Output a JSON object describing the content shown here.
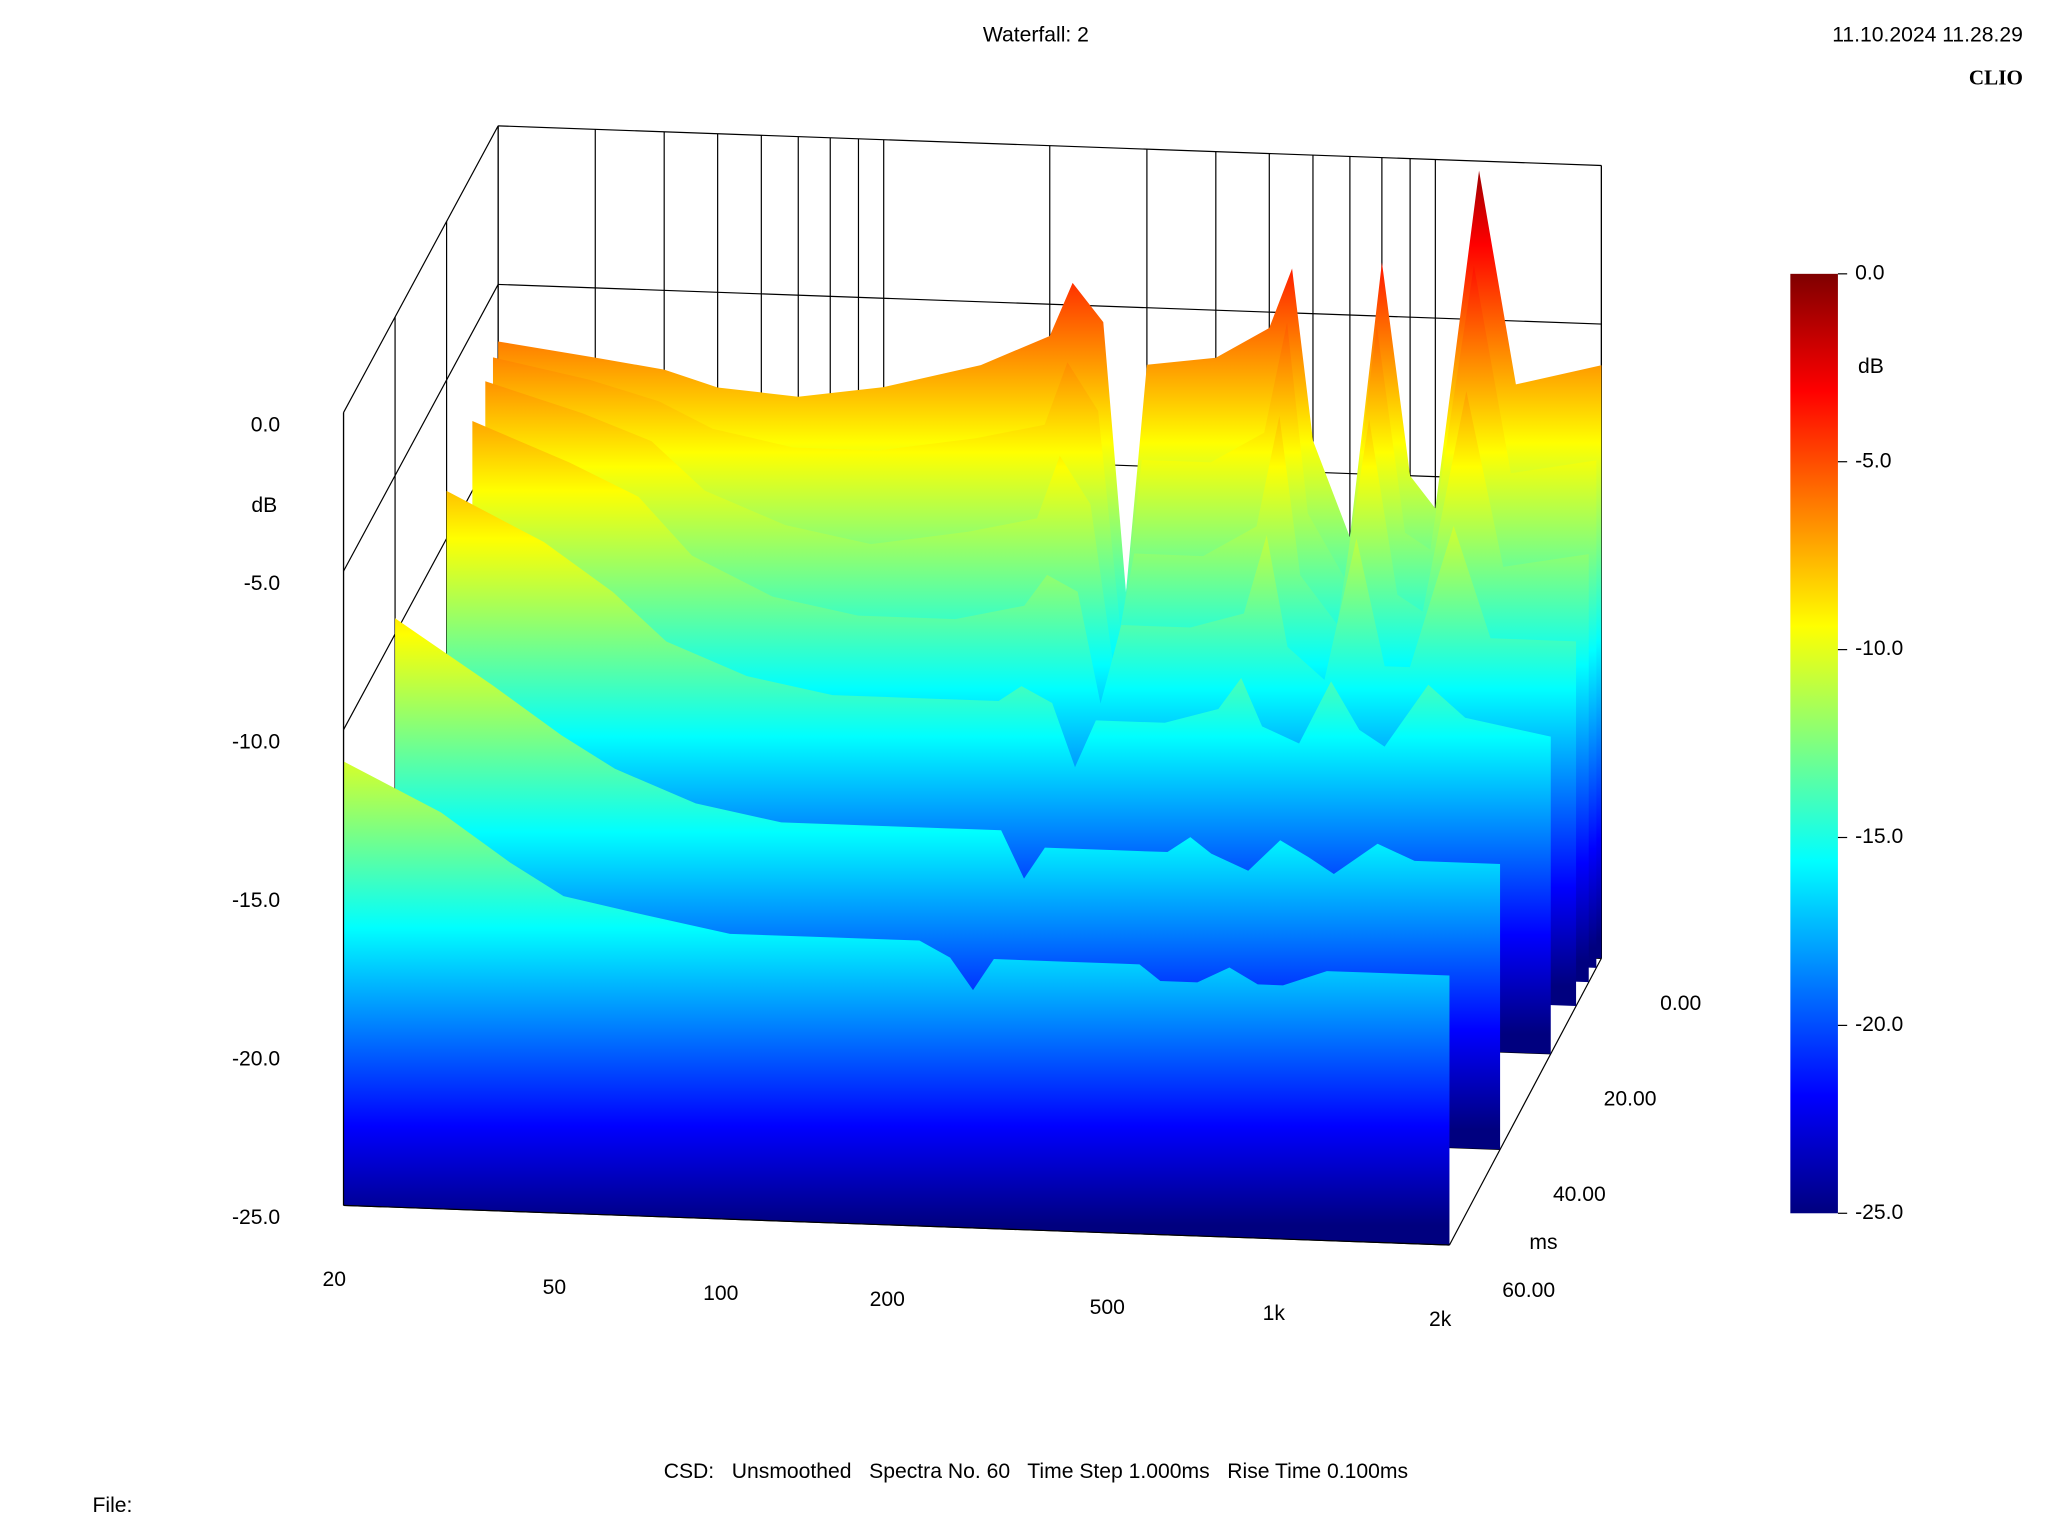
{
  "chart_data": {
    "type": "waterfall",
    "title": "Waterfall: 2",
    "timestamp": "11.10.2024 11.28.29",
    "brand": "CLIO",
    "footer": "CSD:   Unsmoothed   Spectra No. 60   Time Step 1.000ms   Rise Time 0.100ms",
    "file_label": "File:",
    "colormap": "jet",
    "xscale": "log",
    "xlim": [
      20,
      2000
    ],
    "xticks": [
      20,
      50,
      100,
      200,
      500,
      {
        "value": 1000,
        "label": "1k"
      },
      {
        "value": 2000,
        "label": "2k"
      }
    ],
    "xgrid": [
      20,
      30,
      40,
      50,
      60,
      70,
      80,
      90,
      100,
      200,
      300,
      400,
      500,
      600,
      700,
      800,
      900,
      1000,
      2000
    ],
    "zlabel": "dB",
    "zlim": [
      -25,
      0
    ],
    "zticks": [
      {
        "value": 0,
        "label": "0.0"
      },
      {
        "value": -5,
        "label": "-5.0"
      },
      {
        "value": -10,
        "label": "-10.0"
      },
      {
        "value": -15,
        "label": "-15.0"
      },
      {
        "value": -20,
        "label": "-20.0"
      },
      {
        "value": -25,
        "label": "-25.0"
      }
    ],
    "tlabel": "ms",
    "tlim": [
      0,
      60
    ],
    "tticks": [
      {
        "value": 0,
        "label": "0.00"
      },
      {
        "value": 20,
        "label": "20.00"
      },
      {
        "value": 40,
        "label": "40.00"
      },
      {
        "value": 60,
        "label": "60.00"
      }
    ],
    "x": [
      20,
      30,
      40,
      50,
      70,
      100,
      150,
      200,
      220,
      250,
      275,
      300,
      400,
      500,
      550,
      600,
      700,
      800,
      900,
      1000,
      1200,
      1400,
      2000
    ],
    "series": [
      {
        "time": 0,
        "values": [
          -6.8,
          -7.2,
          -7.5,
          -8.0,
          -8.2,
          -7.8,
          -7.0,
          -6.0,
          -4.3,
          -5.5,
          -14.0,
          -6.8,
          -6.5,
          -5.5,
          -3.6,
          -9.0,
          -12.0,
          -3.3,
          -10.0,
          -11.0,
          -0.3,
          -7.0,
          -6.3
        ]
      },
      {
        "time": 2,
        "values": [
          -7.0,
          -7.6,
          -8.2,
          -9.0,
          -9.5,
          -9.5,
          -9.0,
          -8.5,
          -6.5,
          -8.0,
          -15.0,
          -9.5,
          -9.5,
          -8.5,
          -5.0,
          -11.0,
          -13.0,
          -5.0,
          -11.5,
          -12.0,
          -3.0,
          -9.5,
          -9.0
        ]
      },
      {
        "time": 5,
        "values": [
          -7.3,
          -8.2,
          -9.0,
          -10.5,
          -11.5,
          -12.0,
          -11.5,
          -11.0,
          -9.0,
          -10.5,
          -15.5,
          -12.0,
          -12.0,
          -11.0,
          -7.5,
          -12.5,
          -14.0,
          -7.5,
          -13.0,
          -13.5,
          -6.5,
          -12.0,
          -11.5
        ]
      },
      {
        "time": 10,
        "values": [
          -7.8,
          -9.0,
          -10.0,
          -11.8,
          -13.0,
          -13.5,
          -13.5,
          -13.0,
          -12.0,
          -12.5,
          -16.0,
          -13.5,
          -13.5,
          -13.0,
          -10.5,
          -14.0,
          -15.0,
          -10.5,
          -14.5,
          -14.5,
          -10.0,
          -13.5,
          -13.5
        ]
      },
      {
        "time": 20,
        "values": [
          -8.5,
          -10.0,
          -11.5,
          -13.0,
          -14.0,
          -14.5,
          -14.5,
          -14.5,
          -14.0,
          -14.5,
          -16.5,
          -15.0,
          -15.0,
          -14.5,
          -13.5,
          -15.0,
          -15.5,
          -13.5,
          -15.0,
          -15.5,
          -13.5,
          -14.5,
          -15.0
        ]
      },
      {
        "time": 40,
        "values": [
          -9.5,
          -11.5,
          -13.0,
          -14.0,
          -15.0,
          -15.5,
          -15.5,
          -15.5,
          -15.5,
          -15.5,
          -17.0,
          -16.0,
          -16.0,
          -16.0,
          -15.5,
          -16.0,
          -16.5,
          -15.5,
          -16.0,
          -16.5,
          -15.5,
          -16.0,
          -16.0
        ]
      },
      {
        "time": 60,
        "values": [
          -11.0,
          -12.5,
          -14.0,
          -15.0,
          -15.5,
          -16.0,
          -16.0,
          -16.0,
          -16.0,
          -16.5,
          -17.5,
          -16.5,
          -16.5,
          -16.5,
          -16.5,
          -17.0,
          -17.0,
          -16.5,
          -17.0,
          -17.0,
          -16.5,
          -16.5,
          -16.5
        ]
      }
    ]
  }
}
